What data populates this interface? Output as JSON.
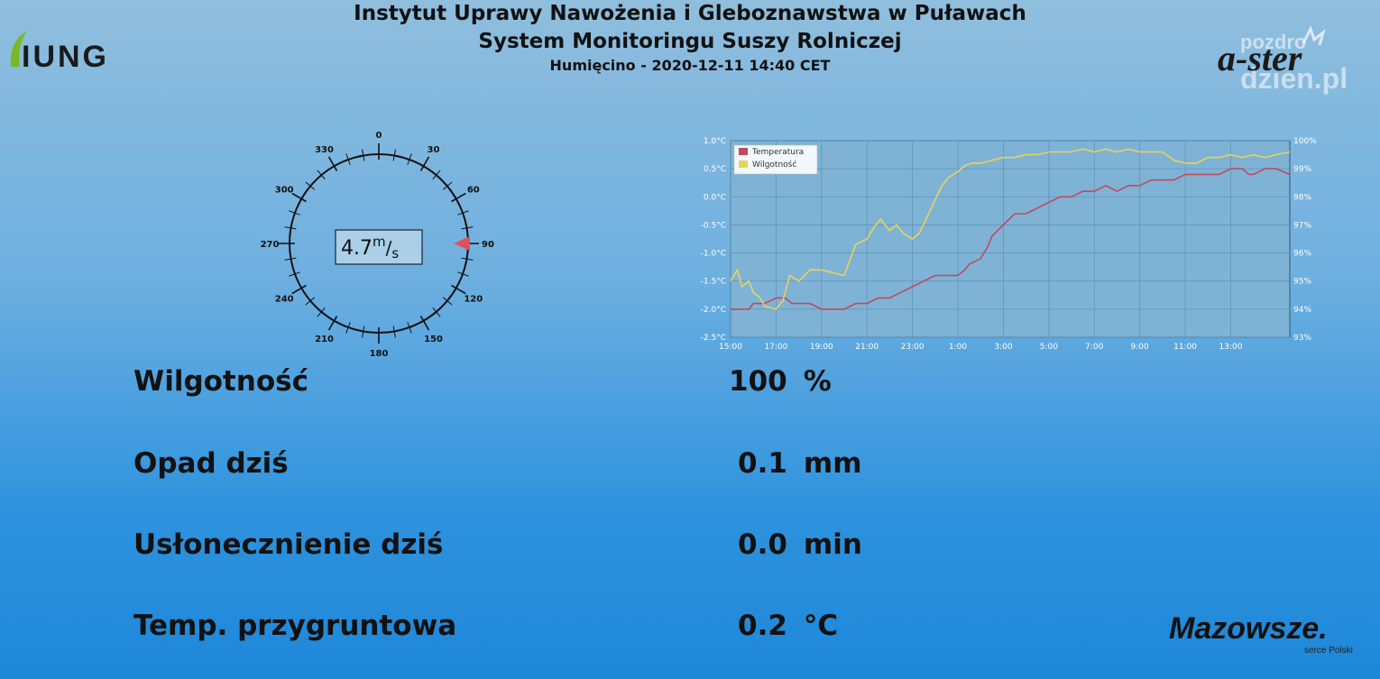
{
  "header": {
    "line1": "Instytut Uprawy Nawożenia i Gleboznawstwa w Puławach",
    "line2": "System Monitoringu Suszy Rolniczej",
    "line3": "Humięcino - 2020-12-11 14:40 CET"
  },
  "logos": {
    "iung": "IUNG",
    "aster": "a-ster",
    "watermark_line1": "pozdro",
    "watermark_line2": "dzien.pl",
    "mazowsze": "Mazowsze.",
    "mazowsze_tag": "serce Polski"
  },
  "wind": {
    "speed": "4.7",
    "unit_num": "m",
    "unit_den": "s",
    "direction_deg": 90,
    "ticks": [
      "0",
      "30",
      "60",
      "90",
      "120",
      "150",
      "180",
      "210",
      "240",
      "270",
      "300",
      "330"
    ]
  },
  "readings": [
    {
      "label": "Wilgotność",
      "value": "100",
      "unit": "%"
    },
    {
      "label": "Opad dziś",
      "value": "0.1",
      "unit": "mm"
    },
    {
      "label": "Usłonecznienie dziś",
      "value": "0.0",
      "unit": "min"
    },
    {
      "label": "Temp. przygruntowa",
      "value": "0.2",
      "unit": "°C"
    }
  ],
  "colors": {
    "temperature": "#c04a5c",
    "humidity": "#e8d35a",
    "wind_marker": "#e0505a"
  },
  "chart_data": {
    "type": "line",
    "x_tick_labels": [
      "15:00",
      "17:00",
      "19:00",
      "21:00",
      "23:00",
      "1:00",
      "3:00",
      "5:00",
      "7:00",
      "9:00",
      "11:00",
      "13:00"
    ],
    "y_left_ticks": [
      "1.0°C",
      "0.5°C",
      "0.0°C",
      "-0.5°C",
      "-1.0°C",
      "-1.5°C",
      "-2.0°C",
      "-2.5°C"
    ],
    "y_right_ticks": [
      "100%",
      "99%",
      "98%",
      "97%",
      "96%",
      "95%",
      "94%",
      "93%"
    ],
    "ylim_left": [
      -2.5,
      1.0
    ],
    "ylim_right": [
      93,
      100
    ],
    "xlim": [
      15,
      39.6
    ],
    "grid": true,
    "legend_position": "top-left",
    "series": [
      {
        "name": "Temperatura",
        "axis": "left",
        "x": [
          15,
          15.8,
          16,
          16.5,
          17,
          17.4,
          17.7,
          18,
          18.5,
          19,
          19.3,
          19.6,
          20,
          20.5,
          21,
          21.5,
          22,
          22.5,
          23,
          23.5,
          24,
          24.5,
          25,
          25.3,
          25.5,
          26,
          26.3,
          26.5,
          27,
          27.5,
          28,
          28.5,
          29,
          29.5,
          30,
          30.5,
          31,
          31.5,
          32,
          32.5,
          33,
          33.5,
          34,
          34.5,
          35,
          35.5,
          36,
          36.5,
          37,
          37.5,
          37.8,
          38,
          38.5,
          39,
          39.6
        ],
        "y": [
          -2.0,
          -2.0,
          -1.9,
          -1.9,
          -1.8,
          -1.8,
          -1.9,
          -1.9,
          -1.9,
          -2.0,
          -2.0,
          -2.0,
          -2.0,
          -1.9,
          -1.9,
          -1.8,
          -1.8,
          -1.7,
          -1.6,
          -1.5,
          -1.4,
          -1.4,
          -1.4,
          -1.3,
          -1.2,
          -1.1,
          -0.9,
          -0.7,
          -0.5,
          -0.3,
          -0.3,
          -0.2,
          -0.1,
          0.0,
          0.0,
          0.1,
          0.1,
          0.2,
          0.1,
          0.2,
          0.2,
          0.3,
          0.3,
          0.3,
          0.4,
          0.4,
          0.4,
          0.4,
          0.5,
          0.5,
          0.4,
          0.4,
          0.5,
          0.5,
          0.4
        ]
      },
      {
        "name": "Wilgotność",
        "axis": "right",
        "x": [
          15,
          15.3,
          15.5,
          15.8,
          16,
          16.3,
          16.5,
          17,
          17.3,
          17.6,
          18,
          18.5,
          19,
          19.5,
          20,
          20.5,
          21,
          21.3,
          21.6,
          22,
          22.3,
          22.6,
          23,
          23.3,
          23.6,
          24,
          24.3,
          24.6,
          25,
          25.3,
          25.6,
          26,
          26.5,
          27,
          27.5,
          28,
          28.5,
          29,
          29.5,
          30,
          30.5,
          31,
          31.5,
          32,
          32.5,
          33,
          33.5,
          34,
          34.5,
          35,
          35.5,
          36,
          36.5,
          37,
          37.5,
          38,
          38.5,
          39,
          39.6
        ],
        "y": [
          95,
          95.4,
          94.8,
          95,
          94.6,
          94.4,
          94.1,
          94.0,
          94.3,
          95.2,
          95.0,
          95.4,
          95.4,
          95.3,
          95.2,
          96.3,
          96.5,
          96.9,
          97.2,
          96.8,
          97.0,
          96.7,
          96.5,
          96.7,
          97.2,
          97.9,
          98.4,
          98.7,
          98.9,
          99.1,
          99.2,
          99.2,
          99.3,
          99.4,
          99.4,
          99.5,
          99.5,
          99.6,
          99.6,
          99.6,
          99.7,
          99.6,
          99.7,
          99.6,
          99.7,
          99.6,
          99.6,
          99.6,
          99.3,
          99.2,
          99.2,
          99.4,
          99.4,
          99.5,
          99.4,
          99.5,
          99.4,
          99.5,
          99.6
        ]
      }
    ]
  }
}
